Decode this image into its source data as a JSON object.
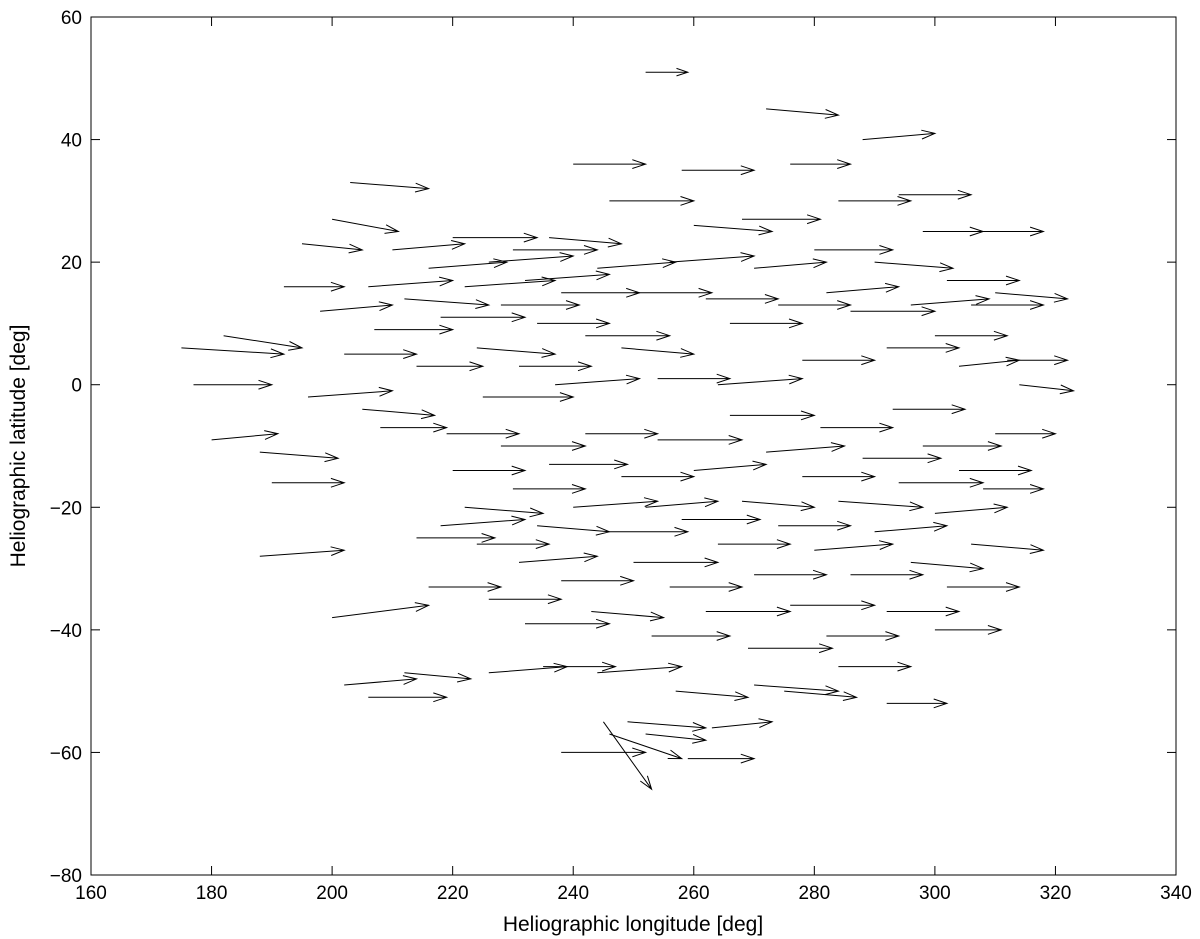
{
  "chart_data": {
    "type": "quiver",
    "title": "",
    "xlabel": "Heliographic longitude [deg]",
    "ylabel": "Heliographic latitude [deg]",
    "xlim": [
      160,
      340
    ],
    "ylim": [
      -80,
      60
    ],
    "xticks": [
      160,
      180,
      200,
      220,
      240,
      260,
      280,
      300,
      320,
      340
    ],
    "yticks": [
      -80,
      -60,
      -40,
      -20,
      0,
      20,
      40,
      60
    ],
    "grid": false,
    "legend": "none",
    "line_color": "#000000",
    "vectors_note_sample": true,
    "vectors": [
      [
        175,
        6,
        17,
        -1
      ],
      [
        177,
        0,
        13,
        0
      ],
      [
        180,
        -9,
        11,
        1
      ],
      [
        182,
        8,
        13,
        -2
      ],
      [
        188,
        -11,
        13,
        -1
      ],
      [
        190,
        -16,
        12,
        0
      ],
      [
        192,
        16,
        10,
        0
      ],
      [
        195,
        23,
        10,
        -1
      ],
      [
        196,
        -2,
        14,
        1
      ],
      [
        198,
        12,
        12,
        1
      ],
      [
        200,
        27,
        11,
        -2
      ],
      [
        202,
        5,
        12,
        0
      ],
      [
        203,
        33,
        13,
        -1
      ],
      [
        205,
        -4,
        12,
        -1
      ],
      [
        206,
        16,
        14,
        1
      ],
      [
        207,
        9,
        13,
        0
      ],
      [
        208,
        -7,
        11,
        0
      ],
      [
        210,
        22,
        12,
        1
      ],
      [
        212,
        14,
        14,
        -1
      ],
      [
        214,
        3,
        11,
        0
      ],
      [
        216,
        19,
        13,
        1
      ],
      [
        218,
        11,
        14,
        0
      ],
      [
        219,
        -8,
        12,
        0
      ],
      [
        220,
        24,
        14,
        0
      ],
      [
        222,
        16,
        15,
        1
      ],
      [
        224,
        6,
        13,
        -1
      ],
      [
        225,
        -2,
        15,
        0
      ],
      [
        226,
        20,
        14,
        1
      ],
      [
        228,
        13,
        13,
        0
      ],
      [
        230,
        22,
        14,
        0
      ],
      [
        231,
        3,
        12,
        0
      ],
      [
        232,
        17,
        14,
        1
      ],
      [
        234,
        10,
        12,
        0
      ],
      [
        236,
        24,
        12,
        -1
      ],
      [
        237,
        0,
        14,
        1
      ],
      [
        238,
        15,
        13,
        0
      ],
      [
        240,
        36,
        12,
        0
      ],
      [
        242,
        8,
        14,
        0
      ],
      [
        244,
        19,
        13,
        1
      ],
      [
        246,
        30,
        14,
        0
      ],
      [
        248,
        6,
        12,
        -1
      ],
      [
        250,
        15,
        13,
        0
      ],
      [
        252,
        51,
        7,
        0
      ],
      [
        254,
        1,
        12,
        0
      ],
      [
        256,
        20,
        14,
        1
      ],
      [
        258,
        35,
        12,
        0
      ],
      [
        260,
        26,
        13,
        -1
      ],
      [
        262,
        14,
        12,
        0
      ],
      [
        264,
        0,
        14,
        1
      ],
      [
        266,
        10,
        12,
        0
      ],
      [
        268,
        27,
        13,
        0
      ],
      [
        270,
        19,
        12,
        1
      ],
      [
        272,
        45,
        12,
        -1
      ],
      [
        274,
        13,
        12,
        0
      ],
      [
        276,
        36,
        10,
        0
      ],
      [
        278,
        4,
        12,
        0
      ],
      [
        280,
        22,
        13,
        0
      ],
      [
        282,
        15,
        12,
        1
      ],
      [
        284,
        30,
        12,
        0
      ],
      [
        286,
        12,
        14,
        0
      ],
      [
        288,
        40,
        12,
        1
      ],
      [
        290,
        20,
        13,
        -1
      ],
      [
        292,
        6,
        12,
        0
      ],
      [
        294,
        31,
        12,
        0
      ],
      [
        296,
        13,
        13,
        1
      ],
      [
        298,
        25,
        10,
        0
      ],
      [
        300,
        8,
        12,
        0
      ],
      [
        302,
        17,
        12,
        0
      ],
      [
        304,
        3,
        10,
        1
      ],
      [
        306,
        13,
        12,
        0
      ],
      [
        308,
        25,
        10,
        0
      ],
      [
        310,
        15,
        12,
        -1
      ],
      [
        312,
        4,
        10,
        0
      ],
      [
        314,
        0,
        9,
        -1
      ],
      [
        188,
        -28,
        14,
        1
      ],
      [
        200,
        -38,
        16,
        2
      ],
      [
        202,
        -49,
        12,
        1
      ],
      [
        206,
        -51,
        13,
        0
      ],
      [
        212,
        -47,
        11,
        -1
      ],
      [
        214,
        -25,
        13,
        0
      ],
      [
        216,
        -33,
        12,
        0
      ],
      [
        218,
        -23,
        14,
        1
      ],
      [
        220,
        -14,
        12,
        0
      ],
      [
        222,
        -20,
        13,
        -1
      ],
      [
        224,
        -26,
        12,
        0
      ],
      [
        226,
        -35,
        12,
        0
      ],
      [
        226,
        -47,
        13,
        1
      ],
      [
        228,
        -10,
        14,
        0
      ],
      [
        230,
        -17,
        12,
        0
      ],
      [
        231,
        -29,
        13,
        1
      ],
      [
        232,
        -39,
        14,
        0
      ],
      [
        234,
        -23,
        12,
        -1
      ],
      [
        235,
        -46,
        12,
        0
      ],
      [
        236,
        -13,
        13,
        0
      ],
      [
        238,
        -32,
        12,
        0
      ],
      [
        238,
        -60,
        14,
        0
      ],
      [
        240,
        -20,
        14,
        1
      ],
      [
        242,
        -8,
        12,
        0
      ],
      [
        243,
        -37,
        12,
        -1
      ],
      [
        244,
        -47,
        14,
        1
      ],
      [
        246,
        -24,
        13,
        0
      ],
      [
        248,
        -15,
        12,
        0
      ],
      [
        249,
        -55,
        13,
        -1
      ],
      [
        250,
        -29,
        14,
        0
      ],
      [
        252,
        -20,
        12,
        1
      ],
      [
        253,
        -41,
        13,
        0
      ],
      [
        254,
        -9,
        14,
        0
      ],
      [
        256,
        -33,
        12,
        0
      ],
      [
        257,
        -50,
        12,
        -1
      ],
      [
        258,
        -22,
        13,
        0
      ],
      [
        260,
        -14,
        12,
        1
      ],
      [
        262,
        -37,
        14,
        0
      ],
      [
        263,
        -56,
        10,
        1
      ],
      [
        264,
        -26,
        12,
        0
      ],
      [
        266,
        -5,
        14,
        0
      ],
      [
        268,
        -19,
        12,
        -1
      ],
      [
        269,
        -43,
        14,
        0
      ],
      [
        270,
        -31,
        12,
        0
      ],
      [
        272,
        -11,
        13,
        1
      ],
      [
        274,
        -23,
        12,
        0
      ],
      [
        275,
        -50,
        12,
        -1
      ],
      [
        276,
        -36,
        14,
        0
      ],
      [
        278,
        -15,
        12,
        0
      ],
      [
        280,
        -27,
        13,
        1
      ],
      [
        281,
        -7,
        12,
        0
      ],
      [
        282,
        -41,
        12,
        0
      ],
      [
        284,
        -19,
        14,
        -1
      ],
      [
        286,
        -31,
        12,
        0
      ],
      [
        288,
        -12,
        13,
        0
      ],
      [
        290,
        -24,
        12,
        1
      ],
      [
        292,
        -37,
        12,
        0
      ],
      [
        293,
        -4,
        12,
        0
      ],
      [
        294,
        -16,
        14,
        0
      ],
      [
        296,
        -29,
        12,
        -1
      ],
      [
        298,
        -10,
        13,
        0
      ],
      [
        300,
        -21,
        12,
        1
      ],
      [
        302,
        -33,
        12,
        0
      ],
      [
        304,
        -14,
        12,
        0
      ],
      [
        306,
        -26,
        12,
        -1
      ],
      [
        308,
        -17,
        10,
        0
      ],
      [
        310,
        -8,
        10,
        0
      ],
      [
        300,
        -40,
        11,
        0
      ],
      [
        246,
        -57,
        12,
        -4
      ],
      [
        252,
        -57,
        10,
        -1
      ],
      [
        245,
        -55,
        8,
        -11
      ],
      [
        259,
        -61,
        11,
        0
      ],
      [
        292,
        -52,
        10,
        0
      ],
      [
        284,
        -46,
        12,
        0
      ],
      [
        270,
        -49,
        14,
        -1
      ]
    ]
  }
}
